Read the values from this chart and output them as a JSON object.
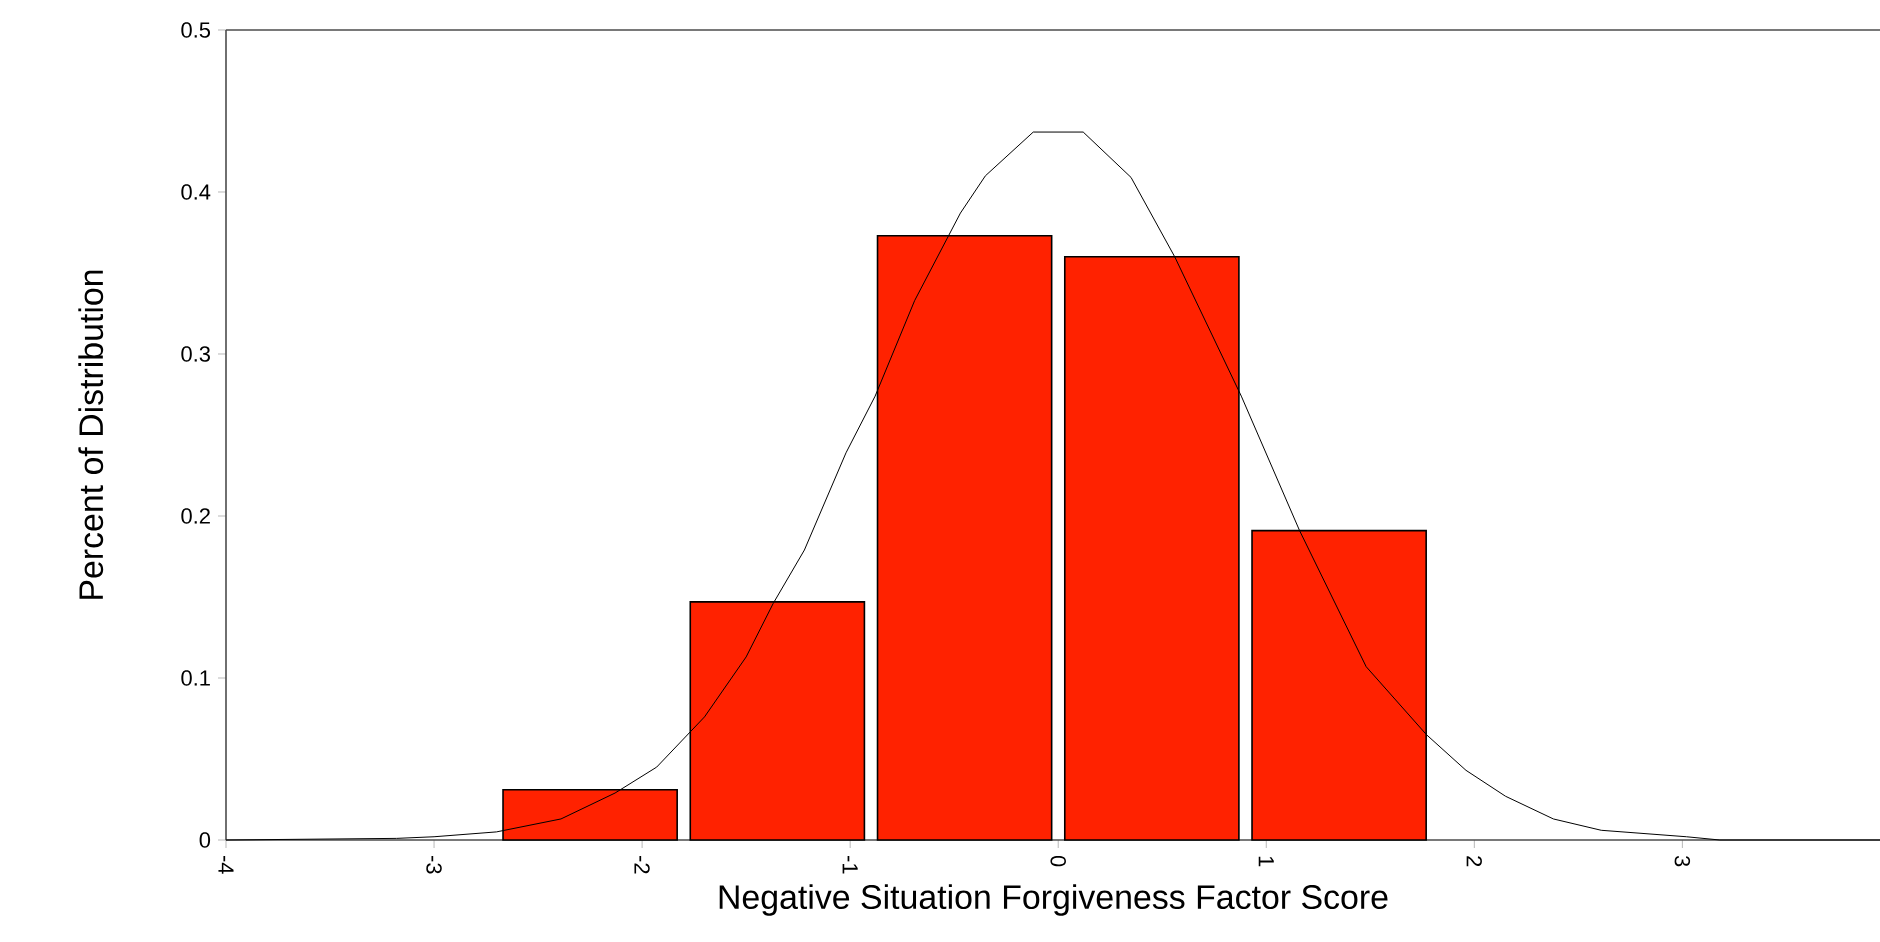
{
  "chart_data": {
    "type": "histogram",
    "xlabel": "Negative Situation Forgiveness Factor Score",
    "ylabel": "Percent of Distribution",
    "bins": [
      -2.7,
      -1.8,
      -0.9,
      0,
      0.9,
      1.8
    ],
    "values": [
      0.031,
      0.147,
      0.373,
      0.36,
      0.191
    ],
    "color": "#ff2200",
    "xlim": [
      -4,
      3.95
    ],
    "ylim": [
      0,
      0.5
    ],
    "xticks": [
      -4,
      -3,
      -2,
      -1,
      0,
      1,
      2,
      3
    ],
    "yticks": [
      0,
      0.1,
      0.2,
      0.3,
      0.4,
      0.5
    ],
    "series": [
      {
        "type": "line",
        "color": "#000000",
        "x": [
          -4,
          -3.18,
          -3.0,
          -2.7,
          -2.39,
          -2.13,
          -1.93,
          -1.7,
          -1.5,
          -1.37,
          -1.22,
          -1.02,
          -0.88,
          -0.69,
          -0.47,
          -0.35,
          -0.12,
          0.12,
          0.35,
          0.56,
          0.88,
          1.16,
          1.48,
          1.77,
          1.96,
          2.15,
          2.38,
          2.61,
          3.02,
          3.18,
          3.95
        ],
        "values": [
          0,
          0.001,
          0.002,
          0.005,
          0.013,
          0.029,
          0.045,
          0.076,
          0.113,
          0.146,
          0.179,
          0.239,
          0.274,
          0.333,
          0.387,
          0.41,
          0.437,
          0.437,
          0.409,
          0.36,
          0.274,
          0.191,
          0.107,
          0.065,
          0.043,
          0.027,
          0.013,
          0.006,
          0.002,
          0,
          0
        ]
      }
    ]
  }
}
